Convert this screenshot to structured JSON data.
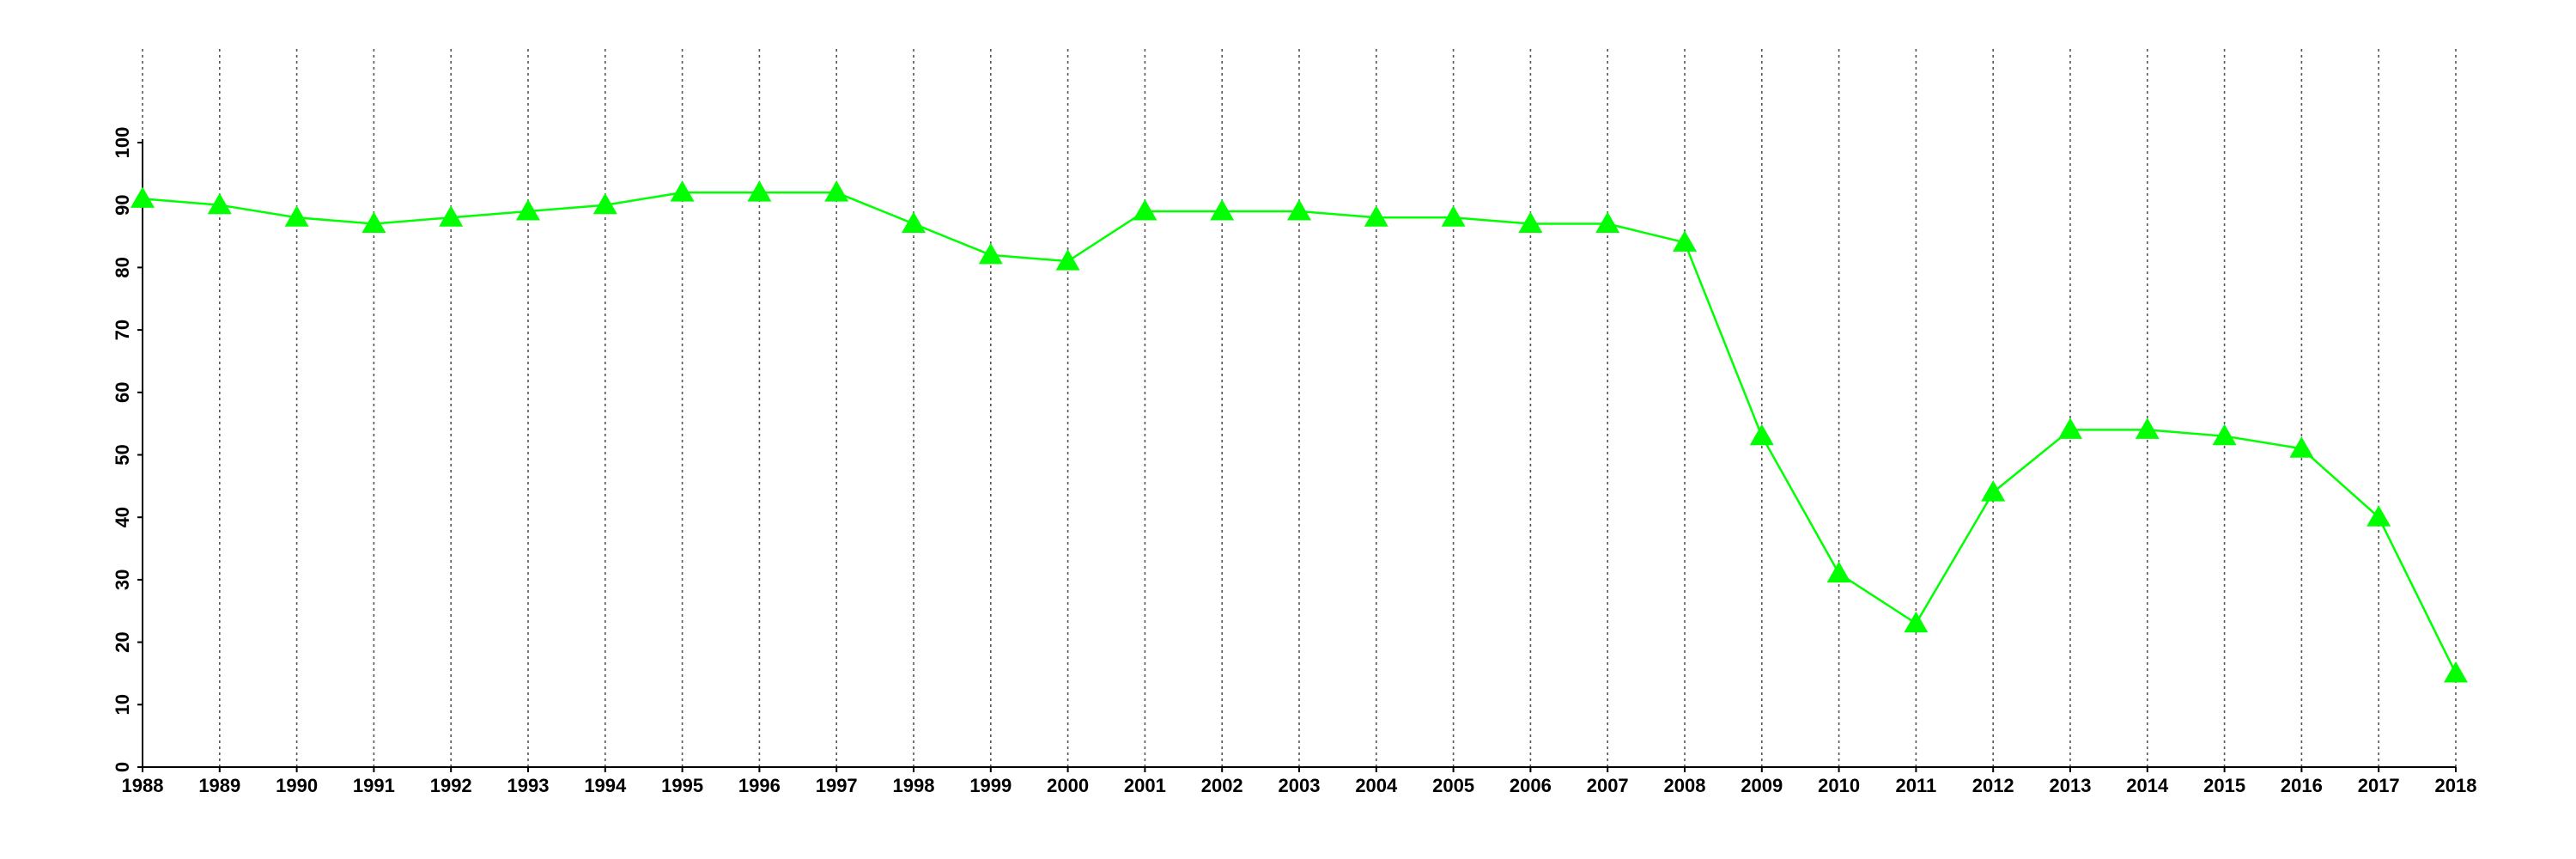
{
  "chart_data": {
    "type": "line",
    "x": [
      1988,
      1989,
      1990,
      1991,
      1992,
      1993,
      1994,
      1995,
      1996,
      1997,
      1998,
      1999,
      2000,
      2001,
      2002,
      2003,
      2004,
      2005,
      2006,
      2007,
      2008,
      2009,
      2010,
      2011,
      2012,
      2013,
      2014,
      2015,
      2016,
      2017,
      2018
    ],
    "values": [
      91,
      90,
      88,
      87,
      88,
      89,
      90,
      92,
      92,
      92,
      87,
      82,
      81,
      89,
      89,
      89,
      88,
      88,
      87,
      87,
      84,
      53,
      31,
      23,
      44,
      54,
      54,
      53,
      51,
      40,
      15
    ],
    "color": "#00ff00",
    "marker": "triangle",
    "xlim": [
      1988,
      2018
    ],
    "xticks": [
      1988,
      1989,
      1990,
      1991,
      1992,
      1993,
      1994,
      1995,
      1996,
      1997,
      1998,
      1999,
      2000,
      2001,
      2002,
      2003,
      2004,
      2005,
      2006,
      2007,
      2008,
      2009,
      2010,
      2011,
      2012,
      2013,
      2014,
      2015,
      2016,
      2017,
      2018
    ],
    "ylim": [
      0,
      100
    ],
    "yticks": [
      0,
      10,
      20,
      30,
      40,
      50,
      60,
      70,
      80,
      90,
      100
    ],
    "grid": "x"
  }
}
